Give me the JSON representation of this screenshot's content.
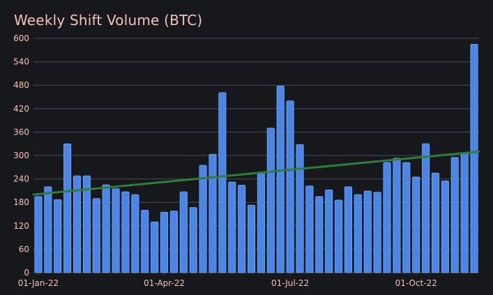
{
  "chart_data": {
    "type": "bar",
    "title": "Weekly Shift Volume (BTC)",
    "xlabel": "",
    "ylabel": "",
    "ylim": [
      0,
      600
    ],
    "yticks": [
      0,
      60,
      120,
      180,
      240,
      300,
      360,
      420,
      480,
      540,
      600
    ],
    "xtick_labels": [
      {
        "label": "01-Jan-22",
        "index": 0
      },
      {
        "label": "01-Apr-22",
        "index": 13
      },
      {
        "label": "01-Jul-22",
        "index": 26
      },
      {
        "label": "01-Oct-22",
        "index": 39
      }
    ],
    "values": [
      195,
      220,
      187,
      330,
      248,
      248,
      190,
      225,
      215,
      207,
      200,
      160,
      130,
      155,
      158,
      207,
      167,
      275,
      303,
      461,
      232,
      224,
      173,
      258,
      370,
      478,
      440,
      328,
      222,
      195,
      212,
      186,
      220,
      200,
      209,
      206,
      282,
      293,
      282,
      245,
      330,
      255,
      235,
      295,
      306,
      585
    ],
    "trend": {
      "start": 200,
      "end": 310
    },
    "colors": {
      "bar": "#4a86e8",
      "bar_edge": "#7aa7f0",
      "trend": "#2e7d3e",
      "grid": "#4a4b52",
      "text": "#f2c4bd",
      "background": "#17181c"
    }
  }
}
